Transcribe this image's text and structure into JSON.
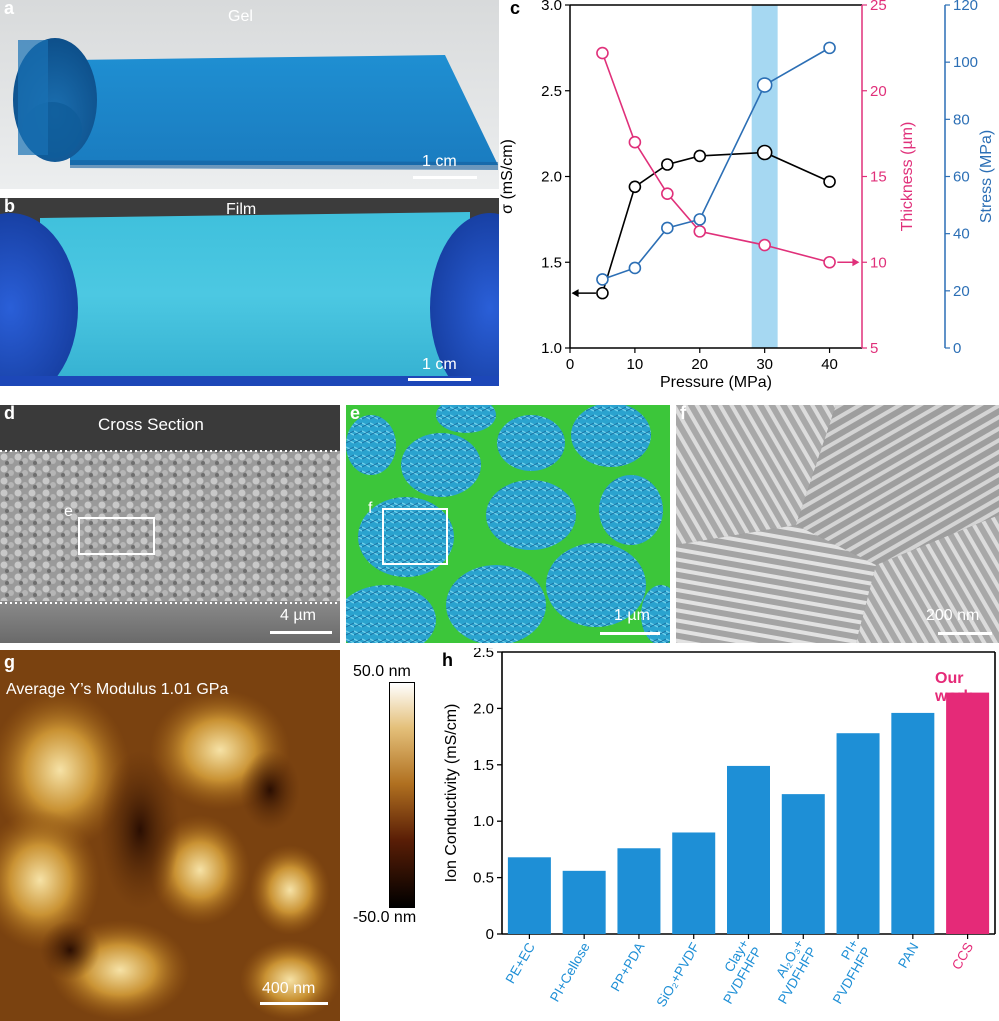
{
  "panels": {
    "a": {
      "letter": "a",
      "title": "Gel",
      "scale": "1 cm"
    },
    "b": {
      "letter": "b",
      "title": "Film",
      "scale": "1 cm"
    },
    "c": {
      "letter": "c"
    },
    "d": {
      "letter": "d",
      "title": "Cross Section",
      "box_label": "e",
      "scale": "4 µm"
    },
    "e": {
      "letter": "e",
      "box_label": "f",
      "scale": "1 µm"
    },
    "f": {
      "letter": "f",
      "scale": "200 nm"
    },
    "g": {
      "letter": "g",
      "title": "Average Y’s Modulus 1.01 GPa",
      "scale": "400 nm",
      "colorbar": {
        "max_label": "50.0 nm",
        "min_label": "-50.0 nm"
      }
    },
    "h": {
      "letter": "h",
      "annotation": "Our work"
    }
  },
  "chart_data": [
    {
      "panel": "c",
      "type": "line",
      "xlabel": "Pressure (MPa)",
      "xlim": [
        0,
        45
      ],
      "xticks": [
        0,
        10,
        20,
        30,
        40
      ],
      "highlight_band": [
        28,
        32
      ],
      "axes": {
        "left": {
          "label": "σ (mS/cm)",
          "lim": [
            1.0,
            3.0
          ],
          "ticks": [
            "1.0",
            "1.5",
            "2.0",
            "2.5",
            "3.0"
          ],
          "color": "#000000"
        },
        "right1": {
          "label": "Thickness (µm)",
          "lim": [
            5,
            25
          ],
          "ticks": [
            "5",
            "10",
            "15",
            "20",
            "25"
          ],
          "color": "#e0307a"
        },
        "right2": {
          "label": "Stress (MPa)",
          "lim": [
            0,
            120
          ],
          "ticks": [
            "0",
            "20",
            "40",
            "60",
            "80",
            "100",
            "120"
          ],
          "color": "#2c6fb5"
        }
      },
      "series": [
        {
          "axis": "left",
          "color": "#000000",
          "x": [
            5,
            10,
            15,
            20,
            30,
            40
          ],
          "y": [
            1.32,
            1.94,
            2.07,
            2.12,
            2.14,
            1.97
          ]
        },
        {
          "axis": "right1",
          "color": "#e0307a",
          "x": [
            5,
            10,
            15,
            20,
            30,
            40
          ],
          "y": [
            22.2,
            17.0,
            14.0,
            11.8,
            11.0,
            10.0
          ]
        },
        {
          "axis": "right2",
          "color": "#2c6fb5",
          "x": [
            5,
            10,
            15,
            20,
            30,
            40
          ],
          "y": [
            24,
            28,
            42,
            45,
            92,
            105
          ]
        }
      ]
    },
    {
      "panel": "h",
      "type": "bar",
      "ylabel": "Ion Conductivity (mS/cm)",
      "ylim": [
        0,
        2.5
      ],
      "yticks": [
        "0",
        "0.5",
        "1.0",
        "1.5",
        "2.0",
        "2.5"
      ],
      "categories": [
        {
          "lines": [
            "PE+EC"
          ],
          "value": 0.68,
          "color": "#1e8fd6"
        },
        {
          "lines": [
            "PI+Cellose"
          ],
          "value": 0.56,
          "color": "#1e8fd6"
        },
        {
          "lines": [
            "PP+PDA"
          ],
          "value": 0.76,
          "color": "#1e8fd6"
        },
        {
          "lines": [
            "SiO₂+PVDF"
          ],
          "value": 0.9,
          "color": "#1e8fd6"
        },
        {
          "lines": [
            "Clay+",
            "PVDFHFP"
          ],
          "value": 1.49,
          "color": "#1e8fd6"
        },
        {
          "lines": [
            "Al₂O₃+",
            "PVDFHFP"
          ],
          "value": 1.24,
          "color": "#1e8fd6"
        },
        {
          "lines": [
            "PI+",
            "PVDFHFP"
          ],
          "value": 1.78,
          "color": "#1e8fd6"
        },
        {
          "lines": [
            "PAN"
          ],
          "value": 1.96,
          "color": "#1e8fd6"
        },
        {
          "lines": [
            "CCS"
          ],
          "value": 2.14,
          "color": "#e52a78"
        }
      ]
    }
  ]
}
